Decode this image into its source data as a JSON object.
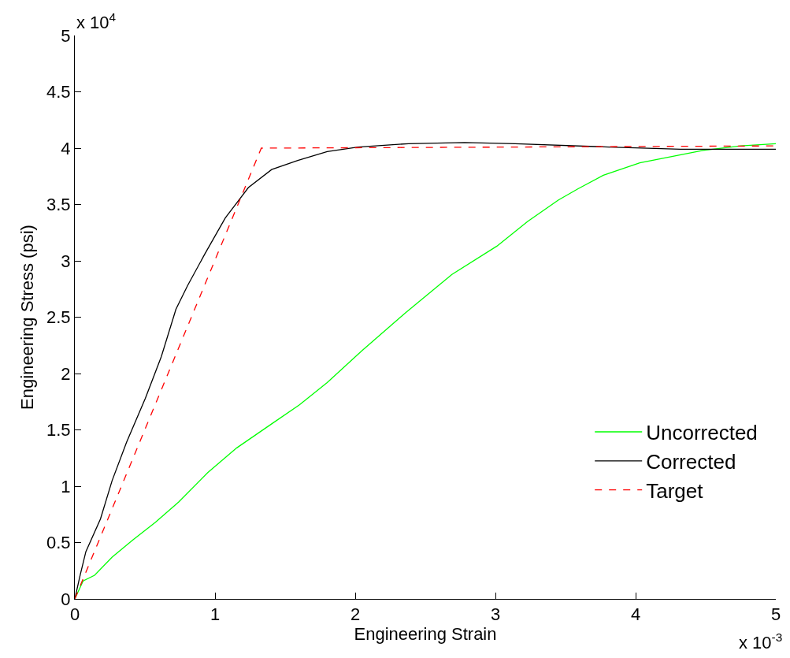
{
  "chart_data": {
    "type": "line",
    "xlabel": "Engineering Strain",
    "ylabel": "Engineering Stress (psi)",
    "annotations": [
      "x 10$^{4}$",
      "x 10$^{-3}$"
    ],
    "xlim": [
      0,
      5
    ],
    "xticks": [
      0,
      1,
      2,
      3,
      4,
      5
    ],
    "ylim": [
      0,
      5
    ],
    "yticks": [
      0,
      0.5,
      1,
      1.5,
      2,
      2.5,
      3,
      3.5,
      4,
      4.5,
      5
    ],
    "legend": "bottom right",
    "series": [
      {
        "name": "Uncorrected",
        "color": "#00ff00",
        "line_style": "solid",
        "x": [
          0,
          0.059,
          0.141,
          0.266,
          0.41,
          0.575,
          0.741,
          0.948,
          1.155,
          1.4,
          1.6,
          1.8,
          2.045,
          2.36,
          2.69,
          3.01,
          3.23,
          3.45,
          3.59,
          3.77,
          4.03,
          4.48,
          4.75,
          5
        ],
        "values": [
          0,
          0.16,
          0.21,
          0.37,
          0.52,
          0.68,
          0.86,
          1.12,
          1.34,
          1.55,
          1.72,
          1.92,
          2.2,
          2.54,
          2.88,
          3.13,
          3.35,
          3.54,
          3.64,
          3.76,
          3.87,
          3.98,
          4.02,
          4.04
        ]
      },
      {
        "name": "Corrected",
        "color": "#000000",
        "line_style": "solid",
        "x": [
          0,
          0.038,
          0.079,
          0.183,
          0.266,
          0.369,
          0.503,
          0.617,
          0.721,
          0.804,
          0.927,
          1.073,
          1.238,
          1.404,
          1.59,
          1.8,
          2.02,
          2.38,
          2.78,
          3.14,
          3.81,
          4.32,
          5
        ],
        "values": [
          0,
          0.21,
          0.42,
          0.71,
          1.05,
          1.39,
          1.78,
          2.15,
          2.57,
          2.78,
          3.06,
          3.38,
          3.65,
          3.81,
          3.89,
          3.97,
          4.01,
          4.04,
          4.05,
          4.04,
          4.01,
          3.99,
          3.99
        ]
      },
      {
        "name": "Target",
        "color": "#ff0000",
        "line_style": "dashed",
        "x": [
          0,
          1.33,
          5
        ],
        "values": [
          0,
          4.0,
          4.02
        ]
      }
    ]
  }
}
